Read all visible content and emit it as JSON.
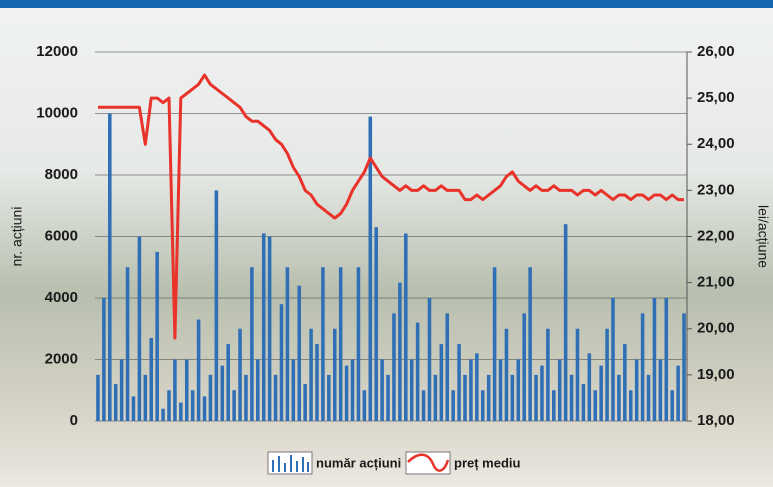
{
  "chart_data": {
    "type": "bar-line",
    "y_label": "nr. acțiuni",
    "y2_label": "lei/acțiune",
    "ylim": [
      0,
      12000
    ],
    "yticks": [
      0,
      2000,
      4000,
      6000,
      8000,
      10000,
      12000
    ],
    "y2lim": [
      18,
      26
    ],
    "y2ticks": [
      {
        "value": 18,
        "label": "18,00"
      },
      {
        "value": 19,
        "label": "19,00"
      },
      {
        "value": 20,
        "label": "20,00"
      },
      {
        "value": 21,
        "label": "21,00"
      },
      {
        "value": 22,
        "label": "22,00"
      },
      {
        "value": 23,
        "label": "23,00"
      },
      {
        "value": 24,
        "label": "24,00"
      },
      {
        "value": 25,
        "label": "25,00"
      },
      {
        "value": 26,
        "label": "26,00"
      }
    ],
    "grid": true,
    "series": [
      {
        "name": "număr acțiuni",
        "type": "bar",
        "color": "#2f6fb5",
        "values": [
          1500,
          4000,
          10000,
          1200,
          2000,
          5000,
          800,
          6000,
          1500,
          2700,
          5500,
          400,
          1000,
          2000,
          600,
          2000,
          1000,
          3300,
          800,
          1500,
          7500,
          1800,
          2500,
          1000,
          3000,
          1500,
          5000,
          2000,
          6100,
          6000,
          1500,
          3800,
          5000,
          2000,
          4400,
          1200,
          3000,
          2500,
          5000,
          1500,
          3000,
          5000,
          1800,
          2000,
          5000,
          1000,
          9900,
          6300,
          2000,
          1500,
          3500,
          4500,
          6100,
          2000,
          3200,
          1000,
          4000,
          1500,
          2500,
          3500,
          1000,
          2500,
          1500,
          2000,
          2200,
          1000,
          1500,
          5000,
          2000,
          3000,
          1500,
          2000,
          3500,
          5000,
          1500,
          1800,
          3000,
          1000,
          2000,
          6400,
          1500,
          3000,
          1200,
          2200,
          1000,
          1800,
          3000,
          4000,
          1500,
          2500,
          1000,
          2000,
          3500,
          1500,
          4000,
          2000,
          4000,
          1000,
          1800,
          3500
        ]
      },
      {
        "name": "preț mediu",
        "type": "line",
        "axis": "y2",
        "color": "#e8322a",
        "values": [
          24.8,
          24.8,
          24.8,
          24.8,
          24.8,
          24.8,
          24.8,
          24.8,
          24.0,
          25.0,
          25.0,
          24.9,
          25.0,
          19.8,
          25.0,
          25.1,
          25.2,
          25.3,
          25.5,
          25.3,
          25.2,
          25.1,
          25.0,
          24.9,
          24.8,
          24.6,
          24.5,
          24.5,
          24.4,
          24.3,
          24.1,
          24.0,
          23.8,
          23.5,
          23.3,
          23.0,
          22.9,
          22.7,
          22.6,
          22.5,
          22.4,
          22.5,
          22.7,
          23.0,
          23.2,
          23.4,
          23.7,
          23.5,
          23.3,
          23.2,
          23.1,
          23.0,
          23.1,
          23.0,
          23.0,
          23.1,
          23.0,
          23.0,
          23.1,
          23.0,
          23.0,
          23.0,
          22.8,
          22.8,
          22.9,
          22.8,
          22.9,
          23.0,
          23.1,
          23.3,
          23.4,
          23.2,
          23.1,
          23.0,
          23.1,
          23.0,
          23.0,
          23.1,
          23.0,
          23.0,
          23.0,
          22.9,
          23.0,
          23.0,
          22.9,
          23.0,
          22.9,
          22.8,
          22.9,
          22.9,
          22.8,
          22.9,
          22.9,
          22.8,
          22.9,
          22.9,
          22.8,
          22.9,
          22.8,
          22.8
        ]
      }
    ],
    "legend": "bottom"
  }
}
